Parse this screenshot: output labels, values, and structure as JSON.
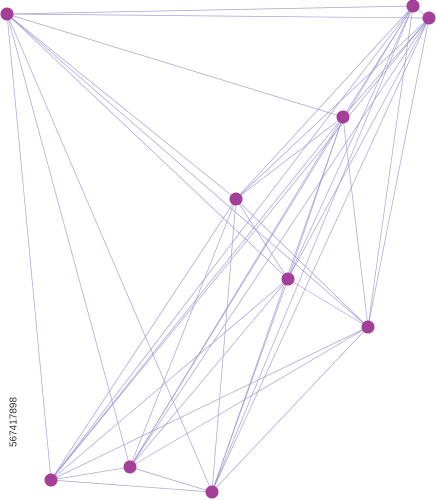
{
  "image_id": "567417898"
}
